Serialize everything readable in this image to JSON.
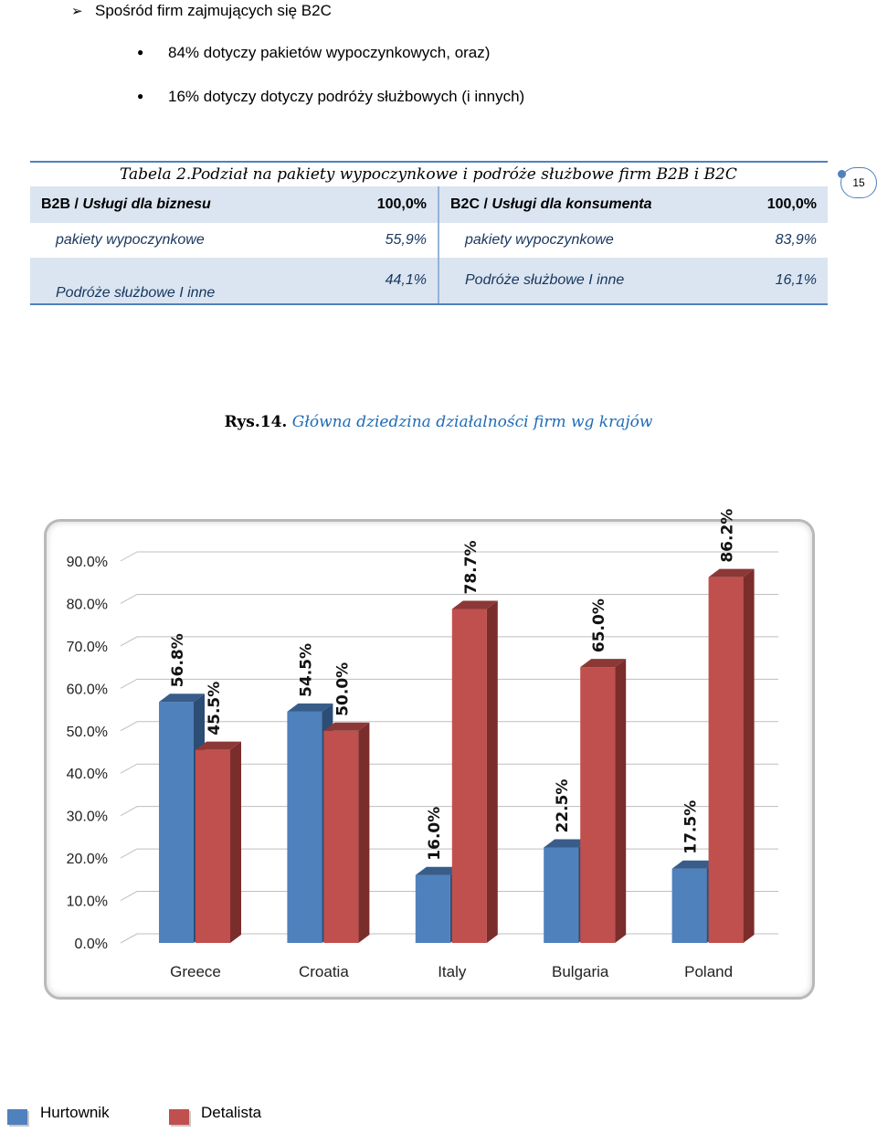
{
  "intro": {
    "heading": "Spośród firm zajmujących się B2C",
    "bullets": [
      "84% dotyczy pakietów wypoczynkowych, oraz)",
      "16% dotyczy  dotyczy podróży służbowych (i innych)"
    ]
  },
  "page_number": "15",
  "table": {
    "caption": "Tabela 2.Podział na pakiety wypoczynkowe i podróże służbowe firm B2B i B2C",
    "left": {
      "header_prefix": "B2B / ",
      "header_label": "Usługi dla biznesu",
      "header_value": "100,0%",
      "rows": [
        {
          "label": "pakiety wypoczynkowe",
          "value": "55,9%"
        },
        {
          "label": "Podróże służbowe I inne",
          "value": "44,1%"
        }
      ]
    },
    "right": {
      "header_prefix": "B2C / ",
      "header_label": "Usługi dla konsumenta",
      "header_value": "100,0%",
      "rows": [
        {
          "label": "pakiety wypoczynkowe",
          "value": "83,9%"
        },
        {
          "label": "Podróże służbowe I inne",
          "value": "16,1%"
        }
      ]
    }
  },
  "figure": {
    "caption_prefix": "Rys.14.",
    "caption_title": " Główna dziedzina działalności firm wg krajów"
  },
  "chart_data": {
    "type": "bar",
    "categories": [
      "Greece",
      "Croatia",
      "Italy",
      "Bulgaria",
      "Poland"
    ],
    "series": [
      {
        "name": "Hurtownik",
        "values": [
          56.8,
          54.5,
          16.0,
          22.5,
          17.5
        ],
        "labels": [
          "56.8%",
          "54.5%",
          "16.0%",
          "22.5%",
          "17.5%"
        ],
        "color": "#4f81bd",
        "side": "#2c4d75",
        "top": "#385d8a"
      },
      {
        "name": "Detalista",
        "values": [
          45.5,
          50.0,
          78.7,
          65.0,
          86.2
        ],
        "labels": [
          "45.5%",
          "50.0%",
          "78.7%",
          "65.0%",
          "86.2%"
        ],
        "color": "#c0504d",
        "side": "#7b2d2b",
        "top": "#8c3836"
      }
    ],
    "ylim": [
      0,
      90
    ],
    "yticks": [
      "0.0%",
      "10.0%",
      "20.0%",
      "30.0%",
      "40.0%",
      "50.0%",
      "60.0%",
      "70.0%",
      "80.0%",
      "90.0%"
    ],
    "grid": true,
    "legend": "bottom-left",
    "three_d": true
  }
}
